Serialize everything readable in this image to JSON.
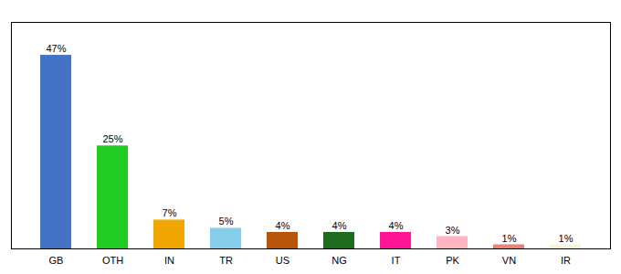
{
  "chart_data": {
    "type": "bar",
    "categories": [
      "GB",
      "OTH",
      "IN",
      "TR",
      "US",
      "NG",
      "IT",
      "PK",
      "VN",
      "IR"
    ],
    "values": [
      47,
      25,
      7,
      5,
      4,
      4,
      4,
      3,
      1,
      1
    ],
    "value_labels": [
      "47%",
      "25%",
      "7%",
      "5%",
      "4%",
      "4%",
      "4%",
      "3%",
      "1%",
      "1%"
    ],
    "colors": [
      "#4472c4",
      "#22cc22",
      "#f0a800",
      "#87ceeb",
      "#b8540a",
      "#1e6b1e",
      "#ff1493",
      "#ffb6c1",
      "#e8827a",
      "#f5f5dc"
    ],
    "ylim": [
      0,
      55
    ],
    "grid": false,
    "data_labels": true,
    "tick_labels": "x"
  }
}
